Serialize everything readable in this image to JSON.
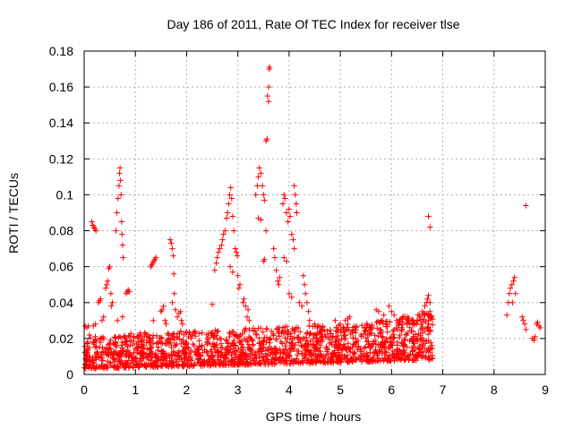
{
  "chart_data": {
    "type": "scatter",
    "title": "Day 186 of 2011, Rate Of TEC Index for receiver tlse",
    "xlabel": "GPS time / hours",
    "ylabel": "ROTI / TECUs",
    "xlim": [
      0,
      9
    ],
    "ylim": [
      0,
      0.18
    ],
    "xticks": [
      0,
      1,
      2,
      3,
      4,
      5,
      6,
      7,
      8,
      9
    ],
    "yticks": [
      0,
      0.02,
      0.04,
      0.06,
      0.08,
      0.1,
      0.12,
      0.14,
      0.16,
      0.18
    ],
    "xtick_labels": [
      "0",
      "1",
      "2",
      "3",
      "4",
      "5",
      "6",
      "7",
      "8",
      "9"
    ],
    "ytick_labels": [
      "0",
      "0.02",
      "0.04",
      "0.06",
      "0.08",
      "0.1",
      "0.12",
      "0.14",
      "0.16",
      "0.18"
    ],
    "grid": true,
    "marker": "+",
    "color": "#ff0000",
    "series": [
      {
        "name": "ROTI",
        "points": [
          [
            0.02,
            0.027
          ],
          [
            0.05,
            0.026
          ],
          [
            0.08,
            0.027
          ],
          [
            0.1,
            0.015
          ],
          [
            0.04,
            0.012
          ],
          [
            0.06,
            0.008
          ],
          [
            0.15,
            0.085
          ],
          [
            0.17,
            0.083
          ],
          [
            0.19,
            0.082
          ],
          [
            0.21,
            0.081
          ],
          [
            0.23,
            0.08
          ],
          [
            0.18,
            0.027
          ],
          [
            0.22,
            0.028
          ],
          [
            0.28,
            0.04
          ],
          [
            0.3,
            0.041
          ],
          [
            0.32,
            0.042
          ],
          [
            0.35,
            0.03
          ],
          [
            0.38,
            0.032
          ],
          [
            0.42,
            0.048
          ],
          [
            0.44,
            0.05
          ],
          [
            0.46,
            0.052
          ],
          [
            0.48,
            0.059
          ],
          [
            0.5,
            0.06
          ],
          [
            0.52,
            0.045
          ],
          [
            0.55,
            0.04
          ],
          [
            0.53,
            0.038
          ],
          [
            0.62,
            0.08
          ],
          [
            0.64,
            0.09
          ],
          [
            0.66,
            0.098
          ],
          [
            0.68,
            0.105
          ],
          [
            0.69,
            0.112
          ],
          [
            0.7,
            0.115
          ],
          [
            0.71,
            0.108
          ],
          [
            0.72,
            0.1
          ],
          [
            0.73,
            0.085
          ],
          [
            0.74,
            0.078
          ],
          [
            0.75,
            0.072
          ],
          [
            0.76,
            0.065
          ],
          [
            0.65,
            0.03
          ],
          [
            0.75,
            0.032
          ],
          [
            0.82,
            0.045
          ],
          [
            0.84,
            0.046
          ],
          [
            0.86,
            0.047
          ],
          [
            0.88,
            0.046
          ],
          [
            1.05,
            0.02
          ],
          [
            1.1,
            0.022
          ],
          [
            1.15,
            0.015
          ],
          [
            1.3,
            0.06
          ],
          [
            1.32,
            0.061
          ],
          [
            1.34,
            0.062
          ],
          [
            1.36,
            0.063
          ],
          [
            1.38,
            0.064
          ],
          [
            1.4,
            0.065
          ],
          [
            1.35,
            0.03
          ],
          [
            1.5,
            0.035
          ],
          [
            1.52,
            0.036
          ],
          [
            1.55,
            0.038
          ],
          [
            1.58,
            0.03
          ],
          [
            1.6,
            0.028
          ],
          [
            1.68,
            0.075
          ],
          [
            1.7,
            0.073
          ],
          [
            1.72,
            0.07
          ],
          [
            1.74,
            0.066
          ],
          [
            1.75,
            0.056
          ],
          [
            1.76,
            0.045
          ],
          [
            1.72,
            0.04
          ],
          [
            1.78,
            0.036
          ],
          [
            1.82,
            0.032
          ],
          [
            1.85,
            0.034
          ],
          [
            1.88,
            0.035
          ],
          [
            1.9,
            0.03
          ],
          [
            1.92,
            0.028
          ],
          [
            2.5,
            0.039
          ],
          [
            2.55,
            0.058
          ],
          [
            2.58,
            0.062
          ],
          [
            2.6,
            0.065
          ],
          [
            2.62,
            0.068
          ],
          [
            2.65,
            0.07
          ],
          [
            2.68,
            0.072
          ],
          [
            2.7,
            0.075
          ],
          [
            2.72,
            0.078
          ],
          [
            2.75,
            0.08
          ],
          [
            2.78,
            0.087
          ],
          [
            2.8,
            0.09
          ],
          [
            2.82,
            0.095
          ],
          [
            2.84,
            0.1
          ],
          [
            2.86,
            0.104
          ],
          [
            2.88,
            0.098
          ],
          [
            2.9,
            0.088
          ],
          [
            2.92,
            0.08
          ],
          [
            2.95,
            0.07
          ],
          [
            2.97,
            0.068
          ],
          [
            2.99,
            0.066
          ],
          [
            3.0,
            0.055
          ],
          [
            3.02,
            0.048
          ],
          [
            3.04,
            0.05
          ],
          [
            2.85,
            0.06
          ],
          [
            2.9,
            0.057
          ],
          [
            3.1,
            0.04
          ],
          [
            3.12,
            0.042
          ],
          [
            3.15,
            0.038
          ],
          [
            3.18,
            0.032
          ],
          [
            3.2,
            0.036
          ],
          [
            3.22,
            0.03
          ],
          [
            3.35,
            0.1
          ],
          [
            3.38,
            0.105
          ],
          [
            3.4,
            0.11
          ],
          [
            3.42,
            0.115
          ],
          [
            3.45,
            0.112
          ],
          [
            3.48,
            0.105
          ],
          [
            3.5,
            0.1
          ],
          [
            3.52,
            0.097
          ],
          [
            3.55,
            0.13
          ],
          [
            3.57,
            0.131
          ],
          [
            3.58,
            0.155
          ],
          [
            3.6,
            0.16
          ],
          [
            3.61,
            0.17
          ],
          [
            3.62,
            0.171
          ],
          [
            3.6,
            0.152
          ],
          [
            3.5,
            0.063
          ],
          [
            3.52,
            0.064
          ],
          [
            3.4,
            0.087
          ],
          [
            3.45,
            0.086
          ],
          [
            3.55,
            0.08
          ],
          [
            3.7,
            0.07
          ],
          [
            3.72,
            0.065
          ],
          [
            3.75,
            0.058
          ],
          [
            3.78,
            0.052
          ],
          [
            3.8,
            0.05
          ],
          [
            3.82,
            0.054
          ],
          [
            3.88,
            0.095
          ],
          [
            3.9,
            0.1
          ],
          [
            3.92,
            0.098
          ],
          [
            3.95,
            0.09
          ],
          [
            3.98,
            0.085
          ],
          [
            4.0,
            0.092
          ],
          [
            4.02,
            0.088
          ],
          [
            4.05,
            0.078
          ],
          [
            4.1,
            0.105
          ],
          [
            4.12,
            0.1
          ],
          [
            4.14,
            0.095
          ],
          [
            4.15,
            0.09
          ],
          [
            4.08,
            0.075
          ],
          [
            4.1,
            0.07
          ],
          [
            3.9,
            0.065
          ],
          [
            3.95,
            0.063
          ],
          [
            4.0,
            0.045
          ],
          [
            4.05,
            0.043
          ],
          [
            4.2,
            0.04
          ],
          [
            4.25,
            0.038
          ],
          [
            4.28,
            0.055
          ],
          [
            4.3,
            0.05
          ],
          [
            4.32,
            0.045
          ],
          [
            4.35,
            0.04
          ],
          [
            4.38,
            0.035
          ],
          [
            4.4,
            0.03
          ],
          [
            4.5,
            0.028
          ],
          [
            4.55,
            0.026
          ],
          [
            4.6,
            0.024
          ],
          [
            4.65,
            0.025
          ],
          [
            4.7,
            0.022
          ],
          [
            4.9,
            0.03
          ],
          [
            5.0,
            0.028
          ],
          [
            5.1,
            0.03
          ],
          [
            5.15,
            0.031
          ],
          [
            5.18,
            0.032
          ],
          [
            5.25,
            0.025
          ],
          [
            5.3,
            0.02
          ],
          [
            5.4,
            0.022
          ],
          [
            5.5,
            0.024
          ],
          [
            5.6,
            0.025
          ],
          [
            5.7,
            0.036
          ],
          [
            5.75,
            0.035
          ],
          [
            5.8,
            0.03
          ],
          [
            5.85,
            0.033
          ],
          [
            5.9,
            0.028
          ],
          [
            5.95,
            0.038
          ],
          [
            6.0,
            0.035
          ],
          [
            6.05,
            0.033
          ],
          [
            6.1,
            0.03
          ],
          [
            6.15,
            0.028
          ],
          [
            6.2,
            0.025
          ],
          [
            6.3,
            0.028
          ],
          [
            6.4,
            0.03
          ],
          [
            6.5,
            0.03
          ],
          [
            6.55,
            0.032
          ],
          [
            6.6,
            0.035
          ],
          [
            6.65,
            0.038
          ],
          [
            6.68,
            0.04
          ],
          [
            6.7,
            0.042
          ],
          [
            6.72,
            0.044
          ],
          [
            6.75,
            0.04
          ],
          [
            6.75,
            0.035
          ],
          [
            6.72,
            0.03
          ],
          [
            6.72,
            0.088
          ],
          [
            6.75,
            0.082
          ],
          [
            8.25,
            0.033
          ],
          [
            8.28,
            0.04
          ],
          [
            8.3,
            0.045
          ],
          [
            8.32,
            0.048
          ],
          [
            8.35,
            0.05
          ],
          [
            8.38,
            0.052
          ],
          [
            8.4,
            0.054
          ],
          [
            8.42,
            0.045
          ],
          [
            8.36,
            0.04
          ],
          [
            8.55,
            0.032
          ],
          [
            8.57,
            0.03
          ],
          [
            8.6,
            0.028
          ],
          [
            8.62,
            0.025
          ],
          [
            8.62,
            0.094
          ],
          [
            8.75,
            0.02
          ],
          [
            8.78,
            0.019
          ],
          [
            8.8,
            0.021
          ],
          [
            8.83,
            0.028
          ],
          [
            8.85,
            0.029
          ],
          [
            8.88,
            0.027
          ],
          [
            8.9,
            0.026
          ]
        ]
      }
    ],
    "dense_band": {
      "description": "dense cluster of baseline ROTI values",
      "x_range": [
        0,
        6.8
      ],
      "y_range_start": [
        0.003,
        0.022
      ],
      "y_range_end": [
        0.008,
        0.03
      ]
    }
  }
}
